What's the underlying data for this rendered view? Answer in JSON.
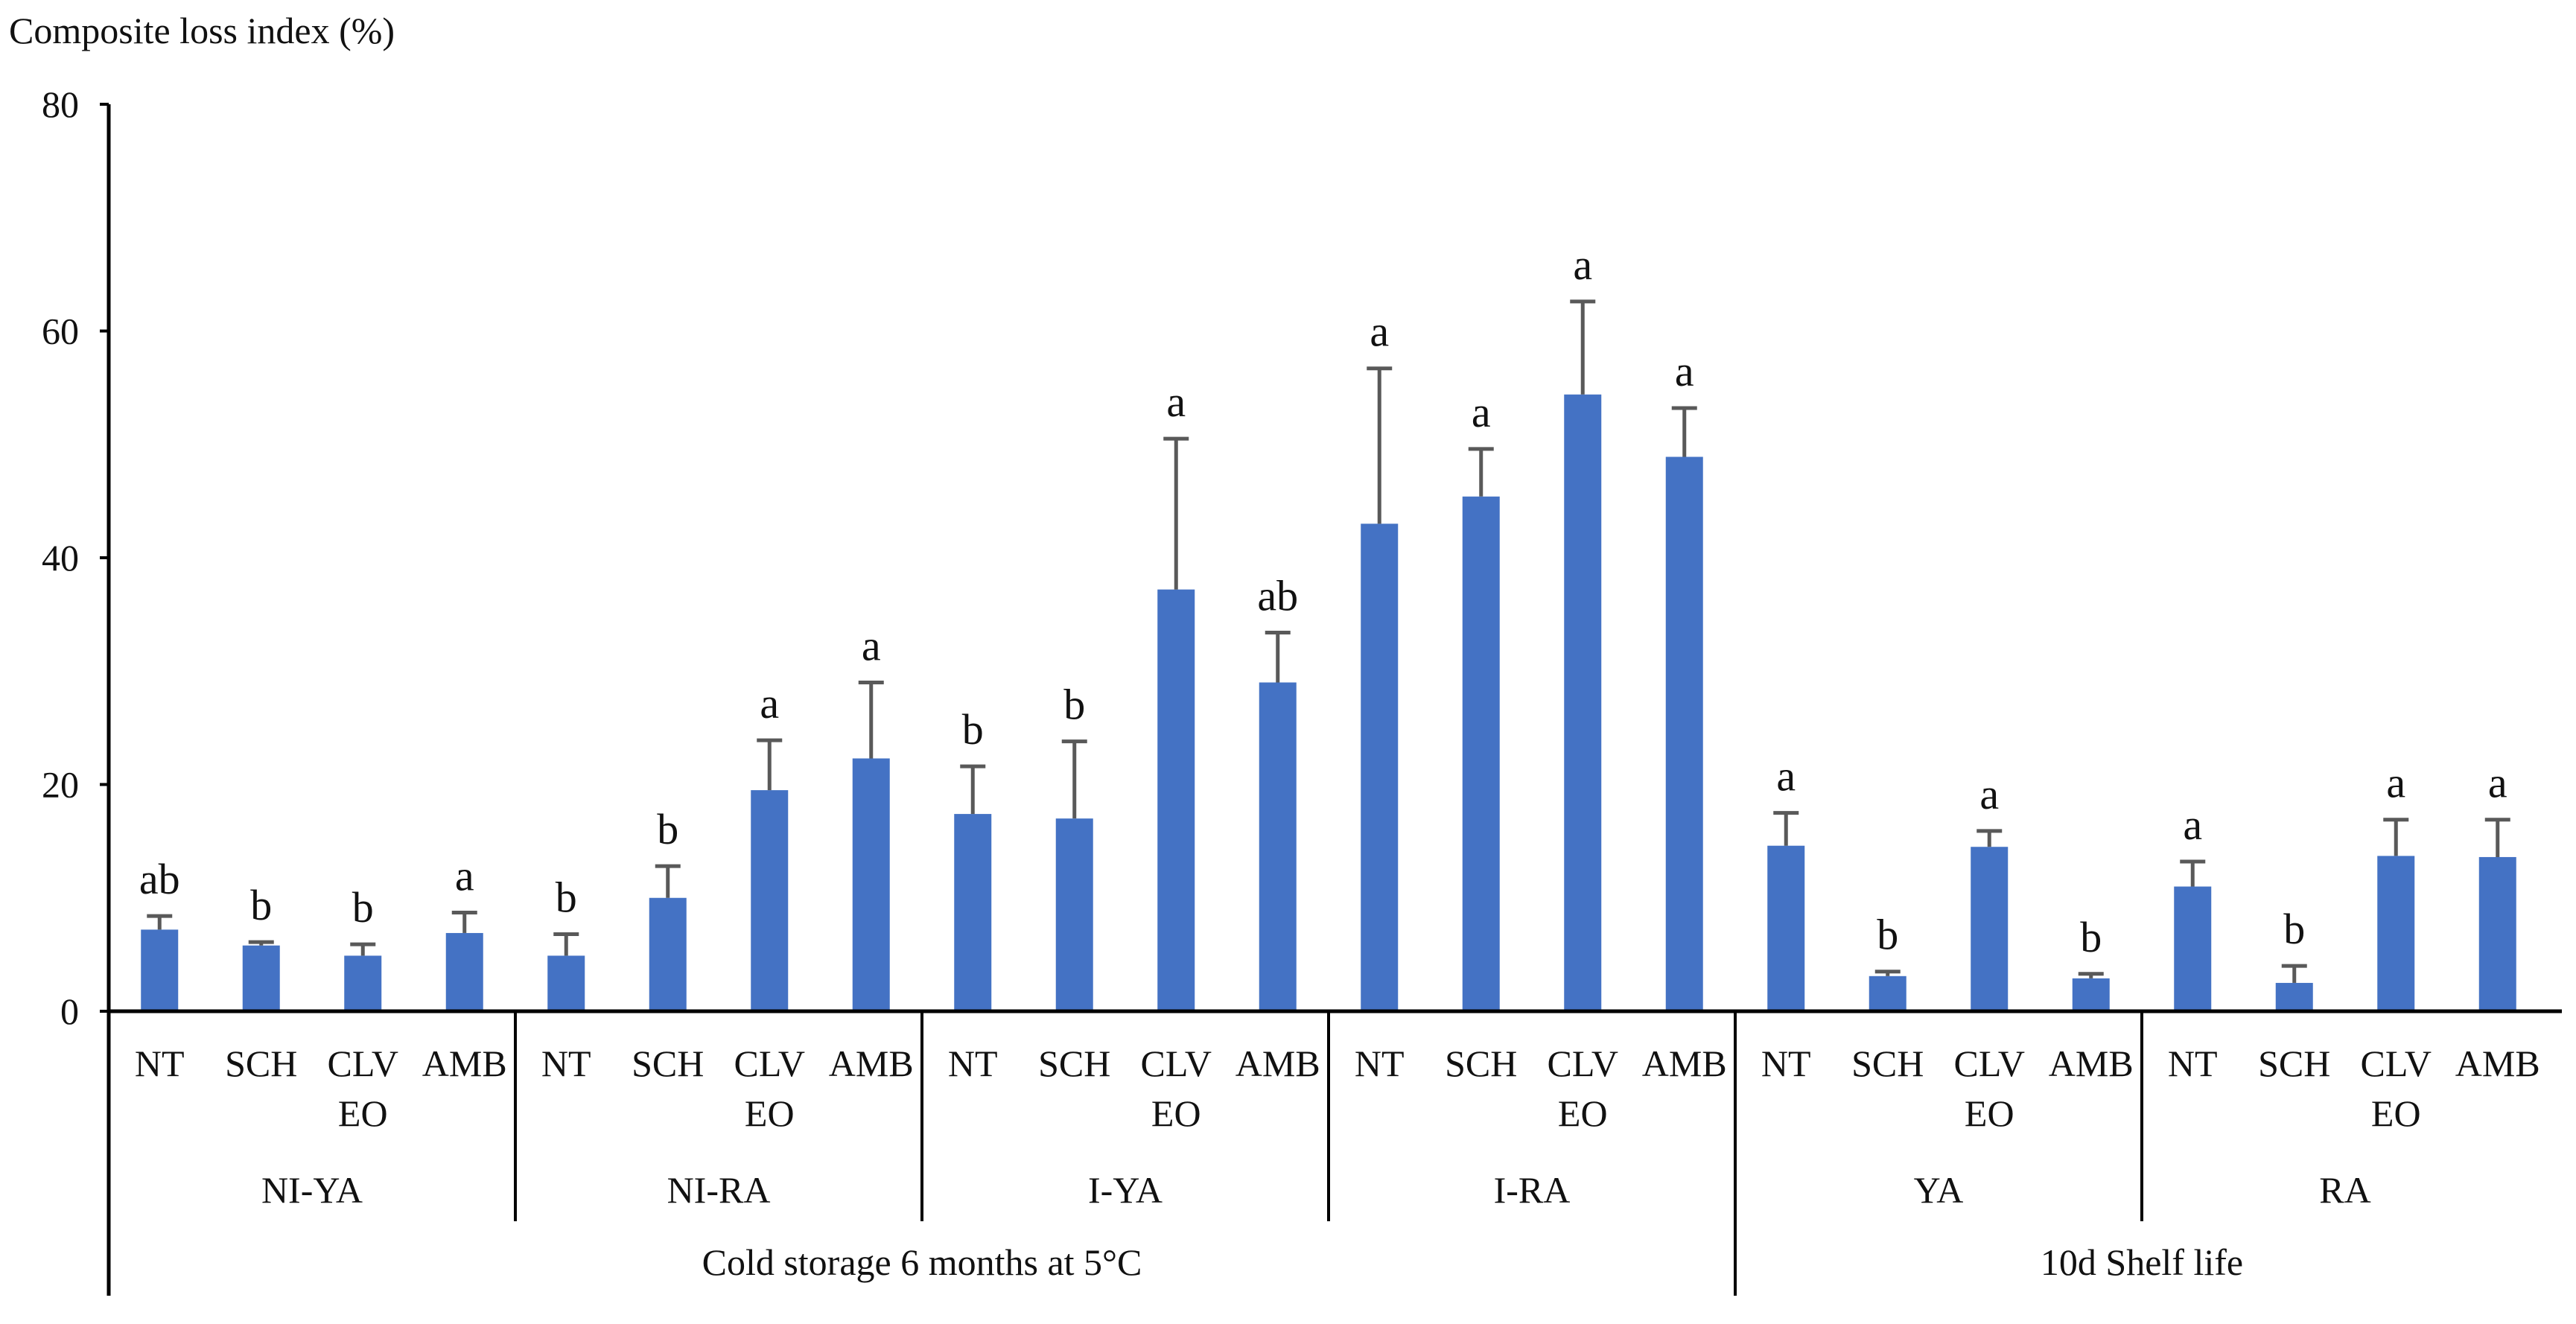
{
  "chart_data": {
    "type": "bar",
    "ylabel": "Composite loss index (%)",
    "ylim": [
      0,
      80
    ],
    "yticks": [
      0,
      20,
      40,
      60,
      80
    ],
    "grid": false,
    "legend": "none",
    "bar_color": "#4472C4",
    "error_color": "#595959",
    "treatment_labels": [
      {
        "line1": "NT",
        "line2": ""
      },
      {
        "line1": "SCH",
        "line2": ""
      },
      {
        "line1": "CLV",
        "line2": "EO"
      },
      {
        "line1": "AMB",
        "line2": ""
      }
    ],
    "periods": [
      {
        "label": "Cold storage 6 months at 5°C",
        "groups": [
          {
            "label": "NI-YA",
            "values": [
              7.2,
              5.8,
              4.9,
              6.9
            ],
            "errors": [
              1.2,
              0.3,
              1.0,
              1.8
            ],
            "letters": [
              "ab",
              "b",
              "b",
              "a"
            ]
          },
          {
            "label": "NI-RA",
            "values": [
              4.9,
              10.0,
              19.5,
              22.3
            ],
            "errors": [
              1.9,
              2.8,
              4.4,
              6.7
            ],
            "letters": [
              "b",
              "b",
              "a",
              "a"
            ]
          },
          {
            "label": "I-YA",
            "values": [
              17.4,
              17.0,
              37.2,
              29.0
            ],
            "errors": [
              4.2,
              6.8,
              13.3,
              4.4
            ],
            "letters": [
              "b",
              "b",
              "a",
              "ab"
            ]
          },
          {
            "label": "I-RA",
            "values": [
              43.0,
              45.4,
              54.4,
              48.9
            ],
            "errors": [
              13.7,
              4.2,
              8.2,
              4.3
            ],
            "letters": [
              "a",
              "a",
              "a",
              "a"
            ]
          }
        ]
      },
      {
        "label": "10d Shelf life",
        "groups": [
          {
            "label": "YA",
            "values": [
              14.6,
              3.1,
              14.5,
              2.9
            ],
            "errors": [
              2.9,
              0.4,
              1.4,
              0.4
            ],
            "letters": [
              "a",
              "b",
              "a",
              "b"
            ]
          },
          {
            "label": "RA",
            "values": [
              11.0,
              2.5,
              13.7,
              13.6
            ],
            "errors": [
              2.2,
              1.5,
              3.2,
              3.3
            ],
            "letters": [
              "a",
              "b",
              "a",
              "a"
            ]
          }
        ]
      }
    ]
  }
}
